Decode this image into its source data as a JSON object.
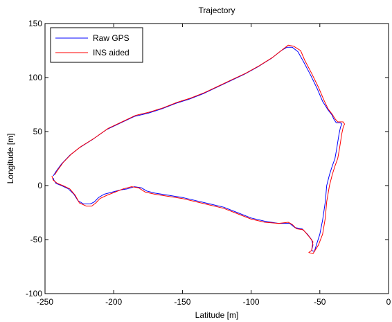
{
  "chart_data": {
    "type": "line",
    "title": "Trajectory",
    "xlabel": "Latitude [m]",
    "ylabel": "Longitude [m]",
    "xlim": [
      -250,
      0
    ],
    "ylim": [
      -100,
      150
    ],
    "xticks": [
      -250,
      -200,
      -150,
      -100,
      -50,
      0
    ],
    "yticks": [
      -100,
      -50,
      0,
      50,
      100,
      150
    ],
    "grid": false,
    "legend_location": "top-left",
    "series": [
      {
        "name": "Raw GPS",
        "color": "#0000ff",
        "points": [
          [
            -244,
            7
          ],
          [
            -243.5,
            5
          ],
          [
            -242,
            2
          ],
          [
            -238,
            0
          ],
          [
            -233,
            -3
          ],
          [
            -229,
            -8
          ],
          [
            -226,
            -14
          ],
          [
            -222,
            -17
          ],
          [
            -217,
            -17
          ],
          [
            -214,
            -15
          ],
          [
            -211,
            -11
          ],
          [
            -207,
            -8
          ],
          [
            -201,
            -6
          ],
          [
            -195,
            -4
          ],
          [
            -190,
            -3
          ],
          [
            -185,
            -1
          ],
          [
            -180,
            -2
          ],
          [
            -176,
            -5
          ],
          [
            -170,
            -7
          ],
          [
            -160,
            -9
          ],
          [
            -150,
            -11
          ],
          [
            -140,
            -14
          ],
          [
            -130,
            -17
          ],
          [
            -120,
            -20
          ],
          [
            -110,
            -25
          ],
          [
            -100,
            -30
          ],
          [
            -90,
            -33
          ],
          [
            -80,
            -35
          ],
          [
            -72,
            -35
          ],
          [
            -68,
            -39
          ],
          [
            -63,
            -40
          ],
          [
            -59,
            -45
          ],
          [
            -56,
            -50
          ],
          [
            -55,
            -55
          ],
          [
            -56,
            -60
          ],
          [
            -54,
            -61
          ],
          [
            -52,
            -53
          ],
          [
            -50,
            -45
          ],
          [
            -48,
            -32
          ],
          [
            -46,
            -15
          ],
          [
            -45,
            0
          ],
          [
            -43,
            10
          ],
          [
            -41,
            18
          ],
          [
            -39,
            25
          ],
          [
            -38,
            32
          ],
          [
            -37,
            40
          ],
          [
            -36,
            48
          ],
          [
            -35,
            54
          ],
          [
            -34,
            57
          ],
          [
            -35,
            58
          ],
          [
            -38,
            58
          ],
          [
            -40,
            62
          ],
          [
            -41,
            65
          ],
          [
            -44,
            70
          ],
          [
            -48,
            78
          ],
          [
            -52,
            90
          ],
          [
            -57,
            103
          ],
          [
            -62,
            115
          ],
          [
            -66,
            124
          ],
          [
            -70,
            128
          ],
          [
            -74,
            128
          ],
          [
            -78,
            125
          ],
          [
            -85,
            118
          ],
          [
            -95,
            110
          ],
          [
            -105,
            103
          ],
          [
            -115,
            97
          ],
          [
            -125,
            91
          ],
          [
            -135,
            85
          ],
          [
            -145,
            80
          ],
          [
            -155,
            76
          ],
          [
            -165,
            71
          ],
          [
            -175,
            67
          ],
          [
            -185,
            64
          ],
          [
            -195,
            58
          ],
          [
            -205,
            52
          ],
          [
            -215,
            43
          ],
          [
            -225,
            35
          ],
          [
            -232,
            28
          ],
          [
            -238,
            20
          ],
          [
            -242,
            13
          ],
          [
            -244,
            9
          ]
        ]
      },
      {
        "name": "INS aided",
        "color": "#ff0000",
        "points": [
          [
            -245,
            9
          ],
          [
            -244,
            5
          ],
          [
            -241,
            2
          ],
          [
            -237,
            0
          ],
          [
            -232,
            -3
          ],
          [
            -228,
            -9
          ],
          [
            -225,
            -16
          ],
          [
            -220,
            -19
          ],
          [
            -216,
            -19
          ],
          [
            -213,
            -16
          ],
          [
            -210,
            -12
          ],
          [
            -205,
            -9
          ],
          [
            -199,
            -6
          ],
          [
            -193,
            -3
          ],
          [
            -187,
            -1
          ],
          [
            -182,
            -2
          ],
          [
            -177,
            -6
          ],
          [
            -170,
            -8
          ],
          [
            -160,
            -10
          ],
          [
            -150,
            -12
          ],
          [
            -140,
            -15
          ],
          [
            -130,
            -18
          ],
          [
            -120,
            -21
          ],
          [
            -110,
            -26
          ],
          [
            -100,
            -31
          ],
          [
            -90,
            -34
          ],
          [
            -80,
            -35
          ],
          [
            -73,
            -34
          ],
          [
            -70,
            -36
          ],
          [
            -67,
            -40
          ],
          [
            -62,
            -41
          ],
          [
            -58,
            -47
          ],
          [
            -55,
            -52
          ],
          [
            -56,
            -60
          ],
          [
            -58,
            -62
          ],
          [
            -55,
            -63
          ],
          [
            -51,
            -55
          ],
          [
            -48,
            -45
          ],
          [
            -46,
            -30
          ],
          [
            -45,
            -15
          ],
          [
            -43,
            0
          ],
          [
            -41,
            10
          ],
          [
            -39,
            18
          ],
          [
            -37,
            25
          ],
          [
            -36,
            32
          ],
          [
            -35,
            40
          ],
          [
            -34,
            48
          ],
          [
            -33,
            54
          ],
          [
            -32,
            57
          ],
          [
            -33,
            59
          ],
          [
            -37,
            59
          ],
          [
            -39,
            62
          ],
          [
            -41,
            66
          ],
          [
            -44,
            71
          ],
          [
            -47,
            79
          ],
          [
            -51,
            91
          ],
          [
            -56,
            104
          ],
          [
            -61,
            116
          ],
          [
            -64,
            125
          ],
          [
            -69,
            129
          ],
          [
            -73,
            130
          ],
          [
            -77,
            126
          ],
          [
            -84,
            119
          ],
          [
            -94,
            111
          ],
          [
            -104,
            104
          ],
          [
            -114,
            98
          ],
          [
            -124,
            92
          ],
          [
            -134,
            86
          ],
          [
            -144,
            81
          ],
          [
            -154,
            77
          ],
          [
            -164,
            72
          ],
          [
            -174,
            68
          ],
          [
            -184,
            65
          ],
          [
            -194,
            59
          ],
          [
            -204,
            53
          ],
          [
            -214,
            44
          ],
          [
            -224,
            36
          ],
          [
            -231,
            29
          ],
          [
            -237,
            21
          ],
          [
            -241,
            14
          ],
          [
            -243,
            10
          ]
        ]
      }
    ]
  }
}
